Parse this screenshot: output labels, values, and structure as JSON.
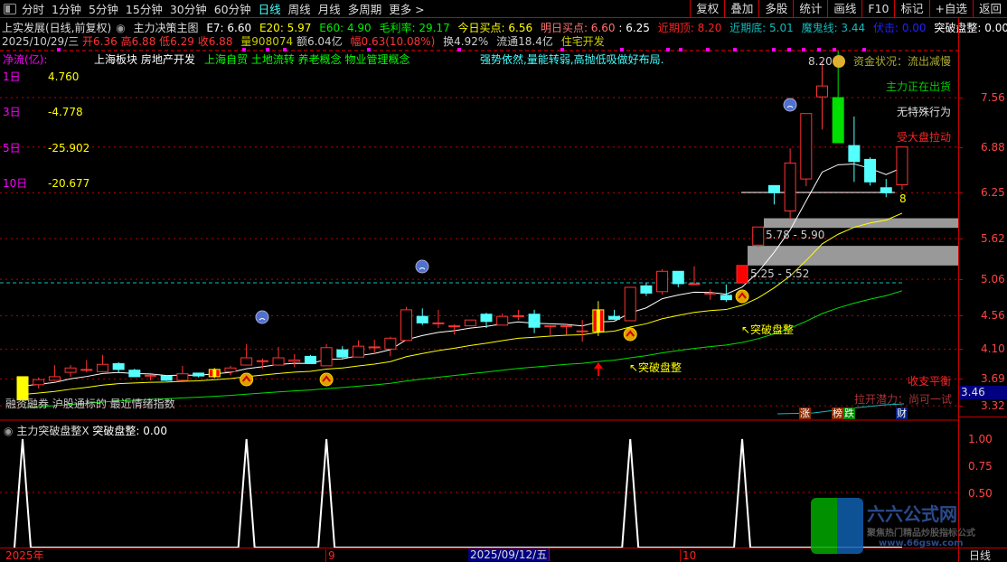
{
  "toolbar": {
    "tabs": [
      "分时",
      "1分钟",
      "5分钟",
      "15分钟",
      "30分钟",
      "60分钟",
      "日线",
      "周线",
      "月线",
      "多周期",
      "更多 >"
    ],
    "active_tab": "日线",
    "buttons": [
      "复权",
      "叠加",
      "多股",
      "统计",
      "画线",
      "F10",
      "标记",
      "+自选",
      "返回"
    ]
  },
  "header": {
    "title": "上实发展(日线,前复权)",
    "indicator": "主力决策主图",
    "e7": "E7: 6.60",
    "e20": "E20: 5.97",
    "e60": "E60: 4.90",
    "margin": "毛利率: 29.17",
    "buy_today": "今日买点: 6.56",
    "buy_tomorrow": "明日买点: 6.60",
    "buy_tomorrow2": ": 6.25",
    "recent_top": "近期顶: 8.20",
    "recent_bottom": "近期底: 5.01",
    "devil": "魔鬼线: 3.44",
    "ambush": "伏击: 0.00",
    "breakout": "突破盘整: 0.00"
  },
  "quote": {
    "date": "2025/10/29/三",
    "open": "开6.36",
    "high": "高6.88",
    "low": "低6.29",
    "close": "收6.88",
    "volume": "量908074",
    "amount": "额6.04亿",
    "change": "幅0.63(10.08%)",
    "turnover": "换4.92%",
    "float": "流通18.4亿",
    "sector": "住宅开发"
  },
  "netflow": {
    "title": "净流(亿):",
    "rows": [
      {
        "label": "1日",
        "value": "4.760"
      },
      {
        "label": "3日",
        "value": "-4.778"
      },
      {
        "label": "5日",
        "value": "-25.902"
      },
      {
        "label": "10日",
        "value": "-20.677"
      }
    ]
  },
  "concepts": {
    "board": "上海板块 房地产开发",
    "tags": "上海自贸 土地流转 养老概念 物业管理概念",
    "advice": "强势依然,量能转弱,高抛低吸做好布局."
  },
  "status": {
    "fund": "资金状况：流出减慢",
    "main": "主力正在出货",
    "behavior": "无特殊行为",
    "market": "受大盘拉动",
    "balance": "收支平衡",
    "potential": "拉开潜力：尚可一试",
    "bottom_text": "融资融券 沪股通标的 最近情绪指数"
  },
  "tags": {
    "up": "涨",
    "list": "榜",
    "down": "跌",
    "fin": "财"
  },
  "annotations": {
    "top_value": "8.20",
    "count": "8",
    "zone1": "5.78 - 5.90",
    "zone2": "5.25 - 5.52",
    "breakout1": "↖突破盘整",
    "breakout2": "↖突破盘整",
    "current_price": "3.46"
  },
  "colors": {
    "up": "#ff3232",
    "down": "#54ffff",
    "e7": "#ffffff",
    "e20": "#ffff00",
    "e60": "#00e000",
    "grid": "#c00000"
  },
  "chart_data": [
    {
      "type": "candlestick",
      "ylim": [
        3.2,
        8.3
      ],
      "ticks": [
        "7.56",
        "6.88",
        "6.25",
        "5.62",
        "5.06",
        "4.56",
        "4.10",
        "3.69",
        "3.32"
      ],
      "ohlc": [
        [
          3.4,
          3.72,
          3.37,
          3.72
        ],
        [
          3.61,
          3.71,
          3.56,
          3.68
        ],
        [
          3.67,
          3.88,
          3.66,
          3.72
        ],
        [
          3.78,
          3.88,
          3.72,
          3.84
        ],
        [
          3.82,
          3.95,
          3.78,
          3.82
        ],
        [
          3.79,
          4.02,
          3.79,
          3.89
        ],
        [
          3.9,
          3.92,
          3.78,
          3.82
        ],
        [
          3.81,
          3.83,
          3.72,
          3.72
        ],
        [
          3.73,
          3.75,
          3.67,
          3.74
        ],
        [
          3.73,
          3.73,
          3.66,
          3.67
        ],
        [
          3.67,
          3.87,
          3.67,
          3.76
        ],
        [
          3.77,
          3.77,
          3.71,
          3.73
        ],
        [
          3.72,
          3.84,
          3.7,
          3.82
        ],
        [
          3.79,
          3.87,
          3.74,
          3.84
        ],
        [
          3.88,
          4.17,
          3.88,
          3.98
        ],
        [
          3.94,
          3.97,
          3.83,
          3.94
        ],
        [
          3.88,
          4.13,
          3.88,
          3.98
        ],
        [
          3.93,
          4.03,
          3.85,
          3.95
        ],
        [
          4.0,
          4.02,
          3.9,
          3.9
        ],
        [
          3.87,
          4.17,
          3.87,
          4.12
        ],
        [
          4.09,
          4.14,
          3.97,
          3.99
        ],
        [
          3.99,
          4.22,
          3.99,
          4.14
        ],
        [
          4.13,
          4.23,
          4.03,
          4.13
        ],
        [
          4.1,
          4.27,
          4.0,
          4.25
        ],
        [
          4.22,
          4.68,
          4.22,
          4.64
        ],
        [
          4.55,
          4.66,
          4.43,
          4.46
        ],
        [
          4.46,
          4.64,
          4.39,
          4.46
        ],
        [
          4.42,
          4.44,
          4.3,
          4.42
        ],
        [
          4.42,
          4.5,
          4.42,
          4.5
        ],
        [
          4.58,
          4.6,
          4.39,
          4.48
        ],
        [
          4.43,
          4.59,
          4.43,
          4.55
        ],
        [
          4.56,
          4.64,
          4.5,
          4.56
        ],
        [
          4.58,
          4.64,
          4.32,
          4.4
        ],
        [
          4.42,
          4.42,
          4.28,
          4.42
        ],
        [
          4.42,
          4.44,
          4.3,
          4.42
        ],
        [
          4.35,
          4.5,
          4.2,
          4.35
        ],
        [
          4.34,
          4.76,
          4.28,
          4.64
        ],
        [
          4.55,
          4.64,
          4.5,
          4.51
        ],
        [
          4.49,
          4.95,
          4.49,
          4.95
        ],
        [
          4.97,
          5.01,
          4.83,
          4.87
        ],
        [
          4.89,
          5.2,
          4.85,
          5.17
        ],
        [
          5.17,
          5.17,
          4.95,
          5.0
        ],
        [
          5.0,
          5.24,
          5.0,
          5.0
        ],
        [
          4.87,
          4.92,
          4.78,
          4.87
        ],
        [
          4.84,
          4.99,
          4.75,
          4.78
        ],
        [
          5.01,
          5.25,
          5.01,
          5.25
        ],
        [
          5.53,
          5.78,
          5.5,
          5.78
        ],
        [
          6.35,
          6.35,
          6.09,
          6.25
        ],
        [
          6.0,
          6.86,
          5.89,
          6.66
        ],
        [
          6.44,
          7.34,
          6.34,
          7.34
        ],
        [
          7.57,
          8.06,
          7.12,
          7.72
        ],
        [
          7.56,
          8.2,
          6.94,
          6.94
        ],
        [
          6.9,
          7.3,
          6.4,
          6.68
        ],
        [
          6.71,
          6.74,
          6.35,
          6.4
        ],
        [
          6.32,
          6.44,
          6.19,
          6.25
        ],
        [
          6.36,
          6.88,
          6.29,
          6.88
        ]
      ],
      "special_candles": [
        0,
        12,
        36
      ],
      "breakout_marks": [
        14,
        19,
        38,
        45
      ],
      "sad_marks": [
        15,
        25,
        49
      ],
      "zones": [
        [
          5.78,
          5.9
        ],
        [
          5.25,
          5.52
        ]
      ]
    },
    {
      "type": "line",
      "title": "主力突破盘整X",
      "series_label": "突破盘整: 0.00",
      "ylim": [
        0,
        1
      ],
      "ticks": [
        "1.00",
        "0.75",
        "0.50"
      ],
      "values": [
        1,
        0,
        0,
        0,
        0,
        0,
        0,
        0,
        0,
        0,
        0,
        0,
        0,
        0,
        1,
        0,
        0,
        0,
        0,
        1,
        0,
        0,
        0,
        0,
        0,
        0,
        0,
        0,
        0,
        0,
        0,
        0,
        0,
        0,
        0,
        0,
        0,
        0,
        1,
        0,
        0,
        0,
        0,
        0,
        0,
        1,
        0,
        0,
        0,
        0,
        0,
        0,
        0,
        0,
        0,
        0
      ]
    }
  ],
  "date_axis": {
    "labels": [
      "2025年",
      "9",
      "10"
    ],
    "cursor": "2025/09/12/五",
    "period": "日线"
  },
  "watermark": {
    "name": "六六公式网",
    "slogan": "聚焦热门精品炒股指标公式",
    "url": "www.66gsw.com"
  }
}
